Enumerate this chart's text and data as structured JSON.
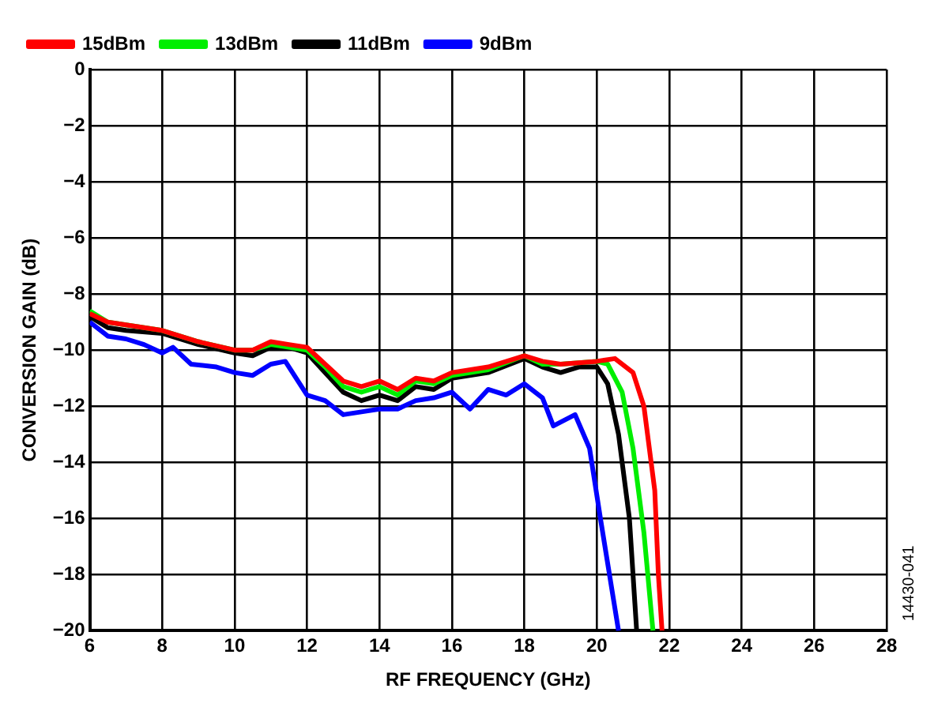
{
  "chart_data": {
    "type": "line",
    "xlabel": "RF FREQUENCY (GHz)",
    "ylabel": "CONVERSION GAIN (dB)",
    "annotations": [
      "14430-041"
    ],
    "xlim": [
      6,
      28
    ],
    "xticks": [
      6,
      8,
      10,
      12,
      14,
      16,
      18,
      20,
      22,
      24,
      26,
      28
    ],
    "ylim": [
      -20,
      0
    ],
    "yticks": [
      -20,
      -18,
      -16,
      -14,
      -12,
      -10,
      -8,
      -6,
      -4,
      -2,
      0
    ],
    "grid": true,
    "legend": "top left",
    "marker": "none",
    "line_style": "solid",
    "series": [
      {
        "name": "15dBm",
        "color": "#ff0000",
        "x": [
          6,
          6.5,
          7,
          8,
          9,
          10,
          10.5,
          11,
          11.5,
          12,
          12.5,
          13,
          13.5,
          14,
          14.5,
          15,
          15.5,
          16,
          17,
          18,
          18.5,
          19,
          20,
          20.5,
          21,
          21.3,
          21.6,
          21.7,
          21.8
        ],
        "values": [
          -8.7,
          -9,
          -9.1,
          -9.3,
          -9.7,
          -10,
          -10,
          -9.7,
          -9.8,
          -9.9,
          -10.5,
          -11.1,
          -11.3,
          -11.1,
          -11.4,
          -11,
          -11.1,
          -10.8,
          -10.6,
          -10.2,
          -10.4,
          -10.5,
          -10.4,
          -10.3,
          -10.8,
          -12,
          -15,
          -18,
          -20
        ]
      },
      {
        "name": "13dBm",
        "color": "#00ee00",
        "x": [
          6,
          6.5,
          7,
          8,
          9,
          10,
          10.5,
          11,
          11.5,
          12,
          12.5,
          13,
          13.5,
          14,
          14.5,
          15,
          15.5,
          16,
          17,
          18,
          18.5,
          19,
          20,
          20.3,
          20.7,
          21,
          21.3,
          21.55
        ],
        "values": [
          -8.6,
          -9,
          -9.1,
          -9.3,
          -9.7,
          -10,
          -10,
          -9.8,
          -9.9,
          -10,
          -10.6,
          -11.3,
          -11.5,
          -11.3,
          -11.6,
          -11.1,
          -11.2,
          -10.9,
          -10.7,
          -10.2,
          -10.5,
          -10.5,
          -10.4,
          -10.5,
          -11.5,
          -13.5,
          -16.5,
          -20
        ]
      },
      {
        "name": "11dBm",
        "color": "#000000",
        "x": [
          6,
          6.5,
          7,
          8,
          9,
          10,
          10.5,
          11,
          11.5,
          12,
          12.5,
          13,
          13.5,
          14,
          14.5,
          15,
          15.5,
          16,
          17,
          18,
          18.5,
          19,
          19.5,
          20,
          20.3,
          20.6,
          20.9,
          21.1
        ],
        "values": [
          -8.8,
          -9.2,
          -9.3,
          -9.4,
          -9.8,
          -10.1,
          -10.2,
          -9.9,
          -9.9,
          -10.1,
          -10.8,
          -11.5,
          -11.8,
          -11.6,
          -11.8,
          -11.3,
          -11.4,
          -11,
          -10.8,
          -10.3,
          -10.6,
          -10.8,
          -10.6,
          -10.6,
          -11.2,
          -13,
          -16,
          -20
        ]
      },
      {
        "name": "9dBm",
        "color": "#0000ff",
        "x": [
          6,
          6.5,
          7,
          7.5,
          8,
          8.3,
          8.8,
          9.5,
          10,
          10.5,
          11,
          11.4,
          12,
          12.5,
          13,
          13.5,
          14,
          14.5,
          15,
          15.5,
          16,
          16.5,
          17,
          17.5,
          18,
          18.5,
          18.8,
          19.4,
          19.8,
          20.1,
          20.6
        ],
        "values": [
          -9,
          -9.5,
          -9.6,
          -9.8,
          -10.1,
          -9.9,
          -10.5,
          -10.6,
          -10.8,
          -10.9,
          -10.5,
          -10.4,
          -11.6,
          -11.8,
          -12.3,
          -12.2,
          -12.1,
          -12.1,
          -11.8,
          -11.7,
          -11.5,
          -12.1,
          -11.4,
          -11.6,
          -11.2,
          -11.7,
          -12.7,
          -12.3,
          -13.5,
          -16,
          -20
        ]
      }
    ]
  }
}
